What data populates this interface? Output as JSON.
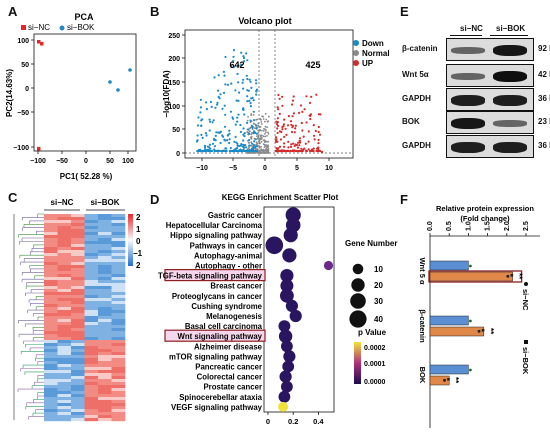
{
  "panel_labels": {
    "a": "A",
    "b": "B",
    "c": "C",
    "d": "D",
    "e": "E",
    "f": "F"
  },
  "pca": {
    "title": "PCA",
    "legend": [
      {
        "name": "si−NC",
        "color": "#e8262a"
      },
      {
        "name": "si−BOK",
        "color": "#1f8ac6"
      }
    ],
    "xlabel": "PC1( 52.28 %)",
    "ylabel": "PC2(14.63%)",
    "xticks": [
      "−100",
      "−50",
      "0",
      "50",
      "100"
    ],
    "yticks": [
      "100",
      "50",
      "0",
      "−50",
      "−100"
    ]
  },
  "volcano": {
    "title": "Volcano plot",
    "xlabel": "",
    "ylabel": "−log10(FDA)",
    "xticks": [
      "−10",
      "−5",
      "0",
      "5",
      "10"
    ],
    "yticks": [
      "250",
      "200",
      "150",
      "100",
      "50",
      "0"
    ],
    "down_count": "642",
    "up_count": "425",
    "legend": [
      {
        "name": "Down",
        "color": "#1a8ac9"
      },
      {
        "name": "Normal",
        "color": "#8a8a8a"
      },
      {
        "name": "UP",
        "color": "#d62a2a"
      }
    ]
  },
  "heatmap": {
    "groups": [
      "si−NC",
      "si−BOK"
    ],
    "scale": [
      "2",
      "1",
      "0",
      "−1",
      "2"
    ]
  },
  "kegg": {
    "title": "KEGG Enrichment Scatter Plot",
    "pathways": [
      "Gastric cancer",
      "Hepatocellular Carcinoma",
      "Hippo signaling pathway",
      "Pathways in cancer",
      "Autophagy-animal",
      "Autophagy - other",
      "TGF-beta signaling pathway",
      "Breast cancer",
      "Proteoglycans in cancer",
      "Cushing syndrome",
      "Melanogenesis",
      "Basal cell carcinoma",
      "Wnt signaling pathway",
      "Alzheimer disease",
      "mTOR signaling pathway",
      "Pancreatic cancer",
      "Colorectal cancer",
      "Prostate cancer",
      "Spinocerebellar ataxia",
      "VEGF signaling pathway"
    ],
    "xticks": [
      "0",
      "0.2",
      "0.4"
    ],
    "size_legend_title": "Gene Number",
    "size_legend": [
      "10",
      "20",
      "30",
      "40"
    ],
    "color_legend_title": "p Value",
    "color_legend": [
      "0.0002",
      "0.0001",
      "0.0000"
    ]
  },
  "chart_data": {
    "type": "scatter",
    "title": "KEGG Enrichment Scatter Plot",
    "categories": [
      "Gastric cancer",
      "Hepatocellular Carcinoma",
      "Hippo signaling pathway",
      "Pathways in cancer",
      "Autophagy-animal",
      "Autophagy - other",
      "TGF-beta signaling pathway",
      "Breast cancer",
      "Proteoglycans in cancer",
      "Cushing syndrome",
      "Melanogenesis",
      "Basal cell carcinoma",
      "Wnt signaling pathway",
      "Alzheimer disease",
      "mTOR signaling pathway",
      "Pancreatic cancer",
      "Colorectal cancer",
      "Prostate cancer",
      "Spinocerebellar ataxia",
      "VEGF signaling pathway"
    ],
    "rich_factor": [
      0.2,
      0.2,
      0.18,
      0.05,
      0.17,
      0.48,
      0.15,
      0.15,
      0.15,
      0.19,
      0.22,
      0.13,
      0.14,
      0.15,
      0.17,
      0.16,
      0.14,
      0.15,
      0.13,
      0.12
    ],
    "gene_number": [
      28,
      25,
      24,
      42,
      24,
      6,
      19,
      18,
      22,
      15,
      15,
      14,
      20,
      14,
      15,
      14,
      15,
      14,
      14,
      8
    ],
    "p_value": [
      1e-05,
      1e-05,
      1e-05,
      1e-05,
      1e-05,
      4e-05,
      1e-05,
      1e-05,
      1e-05,
      1e-05,
      1e-05,
      1e-05,
      1e-05,
      1e-05,
      1e-05,
      1e-05,
      1e-05,
      1e-05,
      1e-05,
      0.00022
    ],
    "xlim": [
      0,
      0.5
    ]
  },
  "western": {
    "groups": [
      "si−NC",
      "si−BOK"
    ],
    "blots": [
      {
        "label": "β-catenin",
        "kd": "92 KD",
        "nc": 0.45,
        "bok": 0.95
      },
      {
        "label": "Wnt 5α",
        "kd": "42 KD",
        "nc": 0.45,
        "bok": 1.0
      },
      {
        "label": "GAPDH",
        "kd": "36 KD",
        "nc": 0.9,
        "bok": 0.9
      },
      {
        "label": "BOK",
        "kd": "23 KD",
        "nc": 0.95,
        "bok": 0.45
      },
      {
        "label": "GAPDH",
        "kd": "36 KD",
        "nc": 0.9,
        "bok": 0.9
      }
    ]
  },
  "bar": {
    "title1": "Relative  protein expression",
    "title2": "(Fold change)",
    "ticks": [
      "0.0",
      "0.5",
      "1.0",
      "1.5",
      "2.0",
      "2.5"
    ],
    "legend": [
      {
        "name": "si−NC",
        "color": "#5b8fd4"
      },
      {
        "name": "si−BOK",
        "color": "#e0874a"
      }
    ],
    "groups": [
      {
        "label": "Wnt 5 α",
        "nc": 1.0,
        "bok": 2.15,
        "sig": "**"
      },
      {
        "label": "β-catenin",
        "nc": 1.0,
        "bok": 1.4,
        "sig": "**"
      },
      {
        "label": "BOK",
        "nc": 1.0,
        "bok": 0.5,
        "sig": "**"
      }
    ],
    "xlim": [
      0,
      2.5
    ]
  }
}
